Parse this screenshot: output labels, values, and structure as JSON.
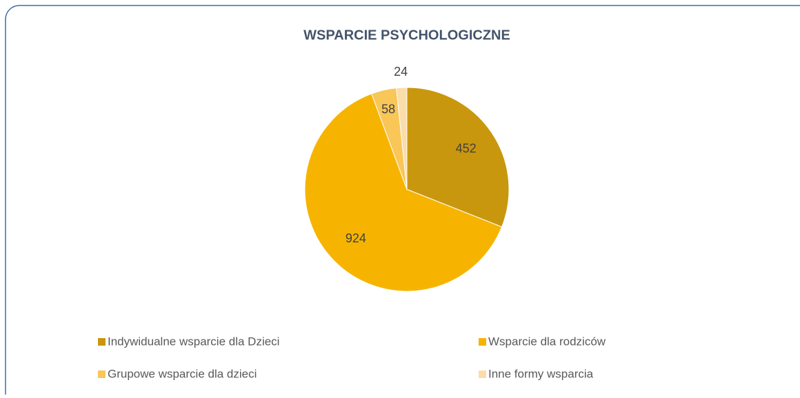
{
  "chart_data": {
    "type": "pie",
    "title": "WSPARCIE PSYCHOLOGICZNE",
    "categories": [
      "Indywidualne wsparcie dla Dzieci",
      "Wsparcie dla rodziców",
      "Grupowe wsparcie dla dzieci",
      "Inne formy wsparcia"
    ],
    "values": [
      452,
      924,
      58,
      24
    ],
    "colors": [
      "#C9970E",
      "#F6B400",
      "#F9C658",
      "#FBDDAA"
    ],
    "legend": "bottom"
  }
}
